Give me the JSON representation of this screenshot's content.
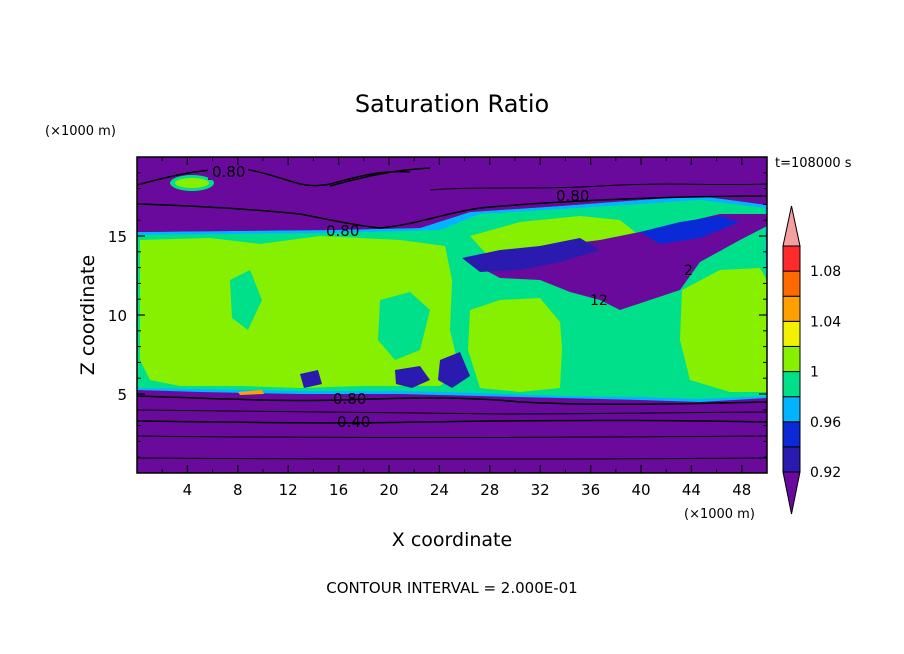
{
  "chart_data": {
    "type": "heatmap",
    "title": "Saturation Ratio",
    "time_label": "t=108000 s",
    "xlabel": "X coordinate",
    "ylabel": "Z coordinate",
    "x_unit": "(×1000 m)",
    "y_unit": "(×1000 m)",
    "footer": "CONTOUR INTERVAL = 2.000E-01",
    "xlim": [
      0,
      50
    ],
    "ylim": [
      0,
      20
    ],
    "x_ticks": [
      "4",
      "8",
      "12",
      "16",
      "20",
      "24",
      "28",
      "32",
      "36",
      "40",
      "44",
      "48"
    ],
    "y_ticks": [
      "5",
      "10",
      "15"
    ],
    "contour_labels": [
      "0.80",
      "0.80",
      "0.80",
      "0.80",
      "0.40",
      "2",
      "12"
    ],
    "colorbar": {
      "labels": [
        "1.08",
        "1.04",
        "1",
        "0.96",
        "0.92"
      ],
      "colors": [
        "#6a0a9c",
        "#2a1ab0",
        "#0a2ad8",
        "#00b4ff",
        "#00e08a",
        "#86f000",
        "#f0f000",
        "#ffa000",
        "#ff6a00",
        "#ff2a2a",
        "#f4a0a0"
      ]
    }
  }
}
